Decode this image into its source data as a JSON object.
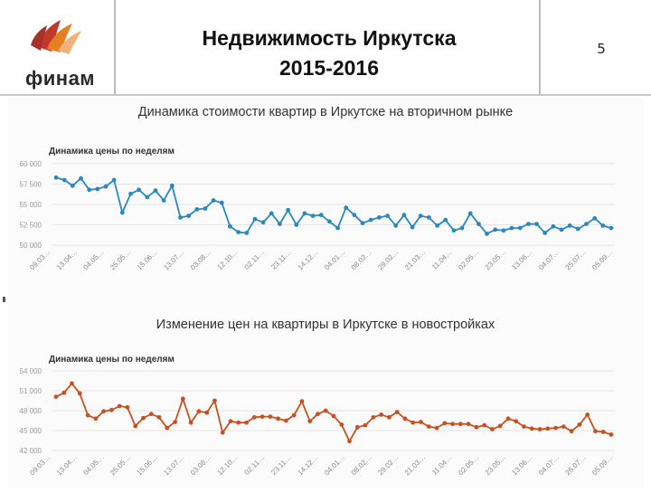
{
  "header": {
    "logo_text": "финам",
    "title_line1": "Недвижимость Иркутска",
    "title_line2": "2015-2016",
    "page_number": "5"
  },
  "colors": {
    "series1": "#2b87c0",
    "series2": "#c7511f",
    "grid": "#e4e4e4"
  },
  "chart_data": [
    {
      "type": "line",
      "title": "Динамика стоимости квартир в Иркутске на вторичном рынке",
      "subtitle": "Динамика цены по неделям",
      "y_ticks": [
        "60 000",
        "57 500",
        "55 000",
        "52 500",
        "50 000"
      ],
      "ylim": [
        50000,
        60000
      ],
      "x_ticks": [
        "09.03…",
        "13.04…",
        "04.05…",
        "25.05…",
        "15.06…",
        "13.07…",
        "03.08…",
        "12.10…",
        "02.11…",
        "23.11…",
        "14.12…",
        "04.01…",
        "08.02…",
        "29.02…",
        "21.03…",
        "11.04…",
        "02.05…",
        "23.05…",
        "13.06…",
        "04.07…",
        "25.07…",
        "05.09…"
      ],
      "series": [
        {
          "name": "Динамика цены по неделям",
          "values": [
            58300,
            58000,
            57300,
            58200,
            56800,
            56900,
            57200,
            58000,
            54000,
            56300,
            56800,
            55900,
            56700,
            55500,
            57300,
            53400,
            53600,
            54400,
            54500,
            55500,
            55200,
            52300,
            51600,
            51500,
            53200,
            52800,
            53900,
            52600,
            54300,
            52500,
            53900,
            53600,
            53700,
            52900,
            52100,
            54600,
            53700,
            52700,
            53100,
            53400,
            53600,
            52400,
            53700,
            52200,
            53600,
            53400,
            52400,
            53100,
            51800,
            52100,
            53900,
            52600,
            51400,
            51900,
            51800,
            52100,
            52100,
            52600,
            52600,
            51500,
            52300,
            51900,
            52400,
            52000,
            52600,
            53300,
            52400,
            52100
          ]
        }
      ]
    },
    {
      "type": "line",
      "title": "Изменение цен на квартиры в Иркутске в новостройках",
      "subtitle": "Динамика цены по неделям",
      "y_ticks": [
        "54 000",
        "51 000",
        "48 000",
        "45 000",
        "42 000"
      ],
      "ylim": [
        42000,
        54000
      ],
      "x_ticks": [
        "09.03…",
        "13.04…",
        "04.05…",
        "25.05…",
        "15.06…",
        "13.07…",
        "03.08…",
        "12.10…",
        "02.11…",
        "23.11…",
        "14.12…",
        "04.01…",
        "08.02…",
        "29.02…",
        "21.03…",
        "11.04…",
        "02.05…",
        "23.05…",
        "13.06…",
        "04.07…",
        "25.07…",
        "05.09…"
      ],
      "series": [
        {
          "name": "Динамика цены по неделям",
          "values": [
            50100,
            50700,
            52100,
            50600,
            47300,
            46800,
            47900,
            48100,
            48700,
            48500,
            45700,
            46900,
            47500,
            47000,
            45400,
            46300,
            49800,
            46200,
            47900,
            47700,
            49500,
            44700,
            46400,
            46200,
            46200,
            47000,
            47100,
            47100,
            46800,
            46500,
            47300,
            49400,
            46400,
            47500,
            48000,
            47200,
            45900,
            43400,
            45500,
            45800,
            47000,
            47400,
            47000,
            47800,
            46800,
            46200,
            46300,
            45600,
            45400,
            46100,
            46000,
            46000,
            46000,
            45500,
            45800,
            45200,
            45700,
            46800,
            46400,
            45600,
            45300,
            45200,
            45300,
            45400,
            45600,
            44900,
            45900,
            47400,
            44900,
            44800,
            44400
          ]
        }
      ]
    }
  ]
}
